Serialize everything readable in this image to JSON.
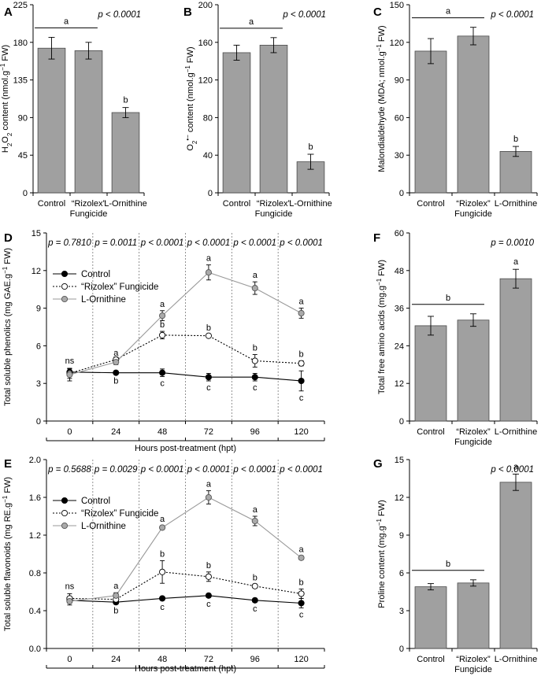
{
  "chart_data": [
    {
      "id": "A",
      "type": "bar",
      "letter": "A",
      "pvalue": "p < 0.0001",
      "ylabel_parts": [
        [
          "H",
          ""
        ],
        [
          "2",
          "sub"
        ],
        [
          "O",
          ""
        ],
        [
          "2",
          "sub"
        ],
        [
          " content (nmol.g",
          ""
        ],
        [
          "−1",
          "sup"
        ],
        [
          " FW)",
          ""
        ]
      ],
      "ylim": [
        0,
        225
      ],
      "yticks": [
        0,
        45,
        90,
        135,
        180,
        225
      ],
      "categories": [
        "Control",
        "“Rizolex”|Fungicide",
        "L-Ornithine"
      ],
      "values": [
        173,
        170,
        96
      ],
      "errors": [
        13,
        10,
        6
      ],
      "letters": [
        "",
        "",
        "b"
      ],
      "group_letter": "a",
      "group_bars": [
        0,
        1
      ],
      "color": "#a0a0a0"
    },
    {
      "id": "B",
      "type": "bar",
      "letter": "B",
      "pvalue": "p < 0.0001",
      "ylabel_parts": [
        [
          "O",
          ""
        ],
        [
          "2",
          "sub"
        ],
        [
          "•−",
          "sup"
        ],
        [
          " content (nmol.g",
          ""
        ],
        [
          "−1",
          "sup"
        ],
        [
          " FW)",
          ""
        ]
      ],
      "ylim": [
        0,
        200
      ],
      "yticks": [
        0,
        40,
        80,
        120,
        160,
        200
      ],
      "categories": [
        "Control",
        "“Rizolex”|Fungicide",
        "L-Ornithine"
      ],
      "values": [
        149,
        157,
        33
      ],
      "errors": [
        8,
        8,
        8
      ],
      "letters": [
        "",
        "",
        "b"
      ],
      "group_letter": "a",
      "group_bars": [
        0,
        1
      ],
      "color": "#a0a0a0"
    },
    {
      "id": "C",
      "type": "bar",
      "letter": "C",
      "pvalue": "p < 0.0001",
      "ylabel_parts": [
        [
          "Malondialdehyde (MDA; nmol.g",
          ""
        ],
        [
          "−1",
          "sup"
        ],
        [
          " FW)",
          ""
        ]
      ],
      "ylim": [
        0,
        150
      ],
      "yticks": [
        0,
        30,
        60,
        90,
        120,
        150
      ],
      "categories": [
        "Control",
        "“Rizolex”|Fungicide",
        "L-Ornithine"
      ],
      "values": [
        113,
        125,
        33
      ],
      "errors": [
        10,
        7,
        4
      ],
      "letters": [
        "",
        "",
        "b"
      ],
      "group_letter": "a",
      "group_bars": [
        0,
        1
      ],
      "color": "#a0a0a0"
    },
    {
      "id": "D",
      "type": "line",
      "letter": "D",
      "ylabel_parts": [
        [
          "Total soluble phenolics (mg GAE.g",
          ""
        ],
        [
          "−1",
          "sup"
        ],
        [
          " FW)",
          ""
        ]
      ],
      "xlabel": "Hours post-treatment (hpt)",
      "ylim": [
        0,
        15
      ],
      "yticks": [
        0,
        3,
        6,
        9,
        12,
        15
      ],
      "x": [
        0,
        24,
        48,
        72,
        96,
        120
      ],
      "pvalues": [
        "p = 0.7810",
        "p = 0.0011",
        "p < 0.0001",
        "p < 0.0001",
        "p < 0.0001",
        "p < 0.0001"
      ],
      "ns_label": "ns",
      "series": [
        {
          "name": "Control",
          "style": "control",
          "values": [
            3.9,
            3.85,
            3.85,
            3.5,
            3.5,
            3.2
          ],
          "errors": [
            0.25,
            0.1,
            0.3,
            0.3,
            0.3,
            0.8
          ],
          "letters": [
            "",
            "b",
            "c",
            "c",
            "c",
            "c"
          ]
        },
        {
          "name": "“Rizolex” Fungicide",
          "style": "rizolex",
          "values": [
            3.8,
            4.9,
            6.85,
            6.8,
            4.8,
            4.6
          ],
          "errors": [
            0.4,
            0.2,
            0.3,
            0.1,
            0.5,
            0.2
          ],
          "letters": [
            "",
            "",
            "b",
            "b",
            "b",
            "b"
          ]
        },
        {
          "name": "L-Ornithine",
          "style": "ornithine",
          "values": [
            3.7,
            4.7,
            8.4,
            11.85,
            10.6,
            8.6
          ],
          "errors": [
            0.5,
            0.2,
            0.4,
            0.6,
            0.5,
            0.4
          ],
          "letters": [
            "",
            "a",
            "a",
            "a",
            "a",
            "a"
          ]
        }
      ]
    },
    {
      "id": "E",
      "type": "line",
      "letter": "E",
      "ylabel_parts": [
        [
          "Total soluble flavonoids (mg RE.g",
          ""
        ],
        [
          "−1",
          "sup"
        ],
        [
          " FW)",
          ""
        ]
      ],
      "xlabel": "Hours post-treatment (hpt)",
      "ylim": [
        0,
        2.0
      ],
      "yticks": [
        0.0,
        0.4,
        0.8,
        1.2,
        1.6,
        2.0
      ],
      "x": [
        0,
        24,
        48,
        72,
        96,
        120
      ],
      "pvalues": [
        "p = 0.5688",
        "p = 0.0029",
        "p < 0.0001",
        "p < 0.0001",
        "p < 0.0001",
        "p < 0.0001"
      ],
      "ns_label": "ns",
      "series": [
        {
          "name": "Control",
          "style": "control",
          "values": [
            0.51,
            0.49,
            0.53,
            0.56,
            0.51,
            0.48
          ],
          "errors": [
            0.03,
            0.02,
            0.02,
            0.02,
            0.02,
            0.05
          ],
          "letters": [
            "",
            "b",
            "c",
            "c",
            "c",
            "c"
          ]
        },
        {
          "name": "“Rizolex” Fungicide",
          "style": "rizolex",
          "values": [
            0.53,
            0.52,
            0.81,
            0.76,
            0.66,
            0.58
          ],
          "errors": [
            0.05,
            0.03,
            0.12,
            0.05,
            0.02,
            0.05
          ],
          "letters": [
            "",
            "",
            "b",
            "b",
            "b",
            "b"
          ]
        },
        {
          "name": "L-Ornithine",
          "style": "ornithine",
          "values": [
            0.5,
            0.56,
            1.28,
            1.6,
            1.35,
            0.96
          ],
          "errors": [
            0.04,
            0.03,
            0.02,
            0.07,
            0.05,
            0.02
          ],
          "letters": [
            "",
            "a",
            "a",
            "a",
            "a",
            "a"
          ]
        }
      ]
    },
    {
      "id": "F",
      "type": "bar",
      "letter": "F",
      "pvalue": "p = 0.0010",
      "ylabel_parts": [
        [
          "Total free amino acids (mg.g",
          ""
        ],
        [
          "−1",
          "sup"
        ],
        [
          " FW)",
          ""
        ]
      ],
      "ylim": [
        0,
        60
      ],
      "yticks": [
        0,
        12,
        24,
        36,
        48,
        60
      ],
      "categories": [
        "Control",
        "“Rizolex”|Fungicide",
        "L-Ornithine"
      ],
      "values": [
        30.4,
        32.2,
        45.4
      ],
      "errors": [
        3,
        2,
        3
      ],
      "letters": [
        "",
        "",
        "a"
      ],
      "group_letter": "b",
      "group_bars": [
        0,
        1
      ],
      "color": "#a0a0a0"
    },
    {
      "id": "G",
      "type": "bar",
      "letter": "G",
      "pvalue": "p < 0.0001",
      "ylabel_parts": [
        [
          "Proline content (mg.g",
          ""
        ],
        [
          "−1",
          "sup"
        ],
        [
          " FW)",
          ""
        ]
      ],
      "ylim": [
        0,
        15
      ],
      "yticks": [
        0,
        3,
        6,
        9,
        12,
        15
      ],
      "categories": [
        "Control",
        "“Rizolex”|Fungicide",
        "L-Ornithine"
      ],
      "values": [
        4.9,
        5.2,
        13.2
      ],
      "errors": [
        0.25,
        0.25,
        0.65
      ],
      "letters": [
        "",
        "",
        "a"
      ],
      "group_letter": "b",
      "group_bars": [
        0,
        1
      ],
      "color": "#a0a0a0"
    }
  ]
}
